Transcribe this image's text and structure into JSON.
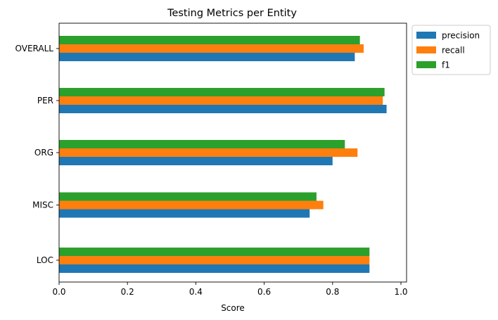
{
  "chart_data": {
    "type": "bar",
    "orientation": "horizontal",
    "title": "Testing Metrics per Entity",
    "xlabel": "Score",
    "ylabel": "",
    "categories": [
      "LOC",
      "MISC",
      "ORG",
      "PER",
      "OVERALL"
    ],
    "xlim": [
      0.0,
      1.0
    ],
    "xticks": [
      "0.0",
      "0.2",
      "0.4",
      "0.6",
      "0.8",
      "1.0"
    ],
    "grid": false,
    "legend": "outside-top-right",
    "series": [
      {
        "name": "precision",
        "color": "#1f77b4",
        "values": [
          0.908,
          0.733,
          0.8,
          0.958,
          0.865
        ]
      },
      {
        "name": "recall",
        "color": "#ff7f0e",
        "values": [
          0.908,
          0.773,
          0.873,
          0.947,
          0.891
        ]
      },
      {
        "name": "f1",
        "color": "#2ca02c",
        "values": [
          0.908,
          0.753,
          0.836,
          0.952,
          0.88
        ]
      }
    ]
  }
}
